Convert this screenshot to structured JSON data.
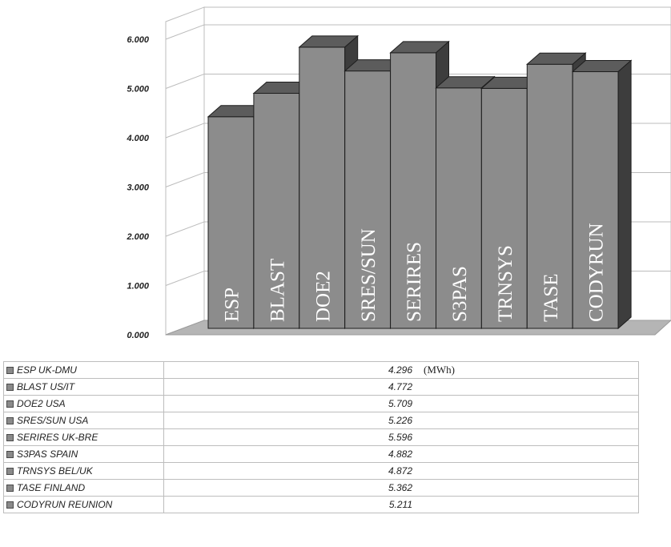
{
  "chart_data": {
    "type": "bar",
    "ylim": [
      0,
      6
    ],
    "y_ticks": [
      "0.000",
      "1.000",
      "2.000",
      "3.000",
      "4.000",
      "5.000",
      "6.000"
    ],
    "categories": [
      "ESP",
      "BLAST",
      "DOE2",
      "SRES/SUN",
      "SERIRES",
      "S3PAS",
      "TRNSYS",
      "TASE",
      "CODYRUN"
    ],
    "values": [
      4.296,
      4.772,
      5.709,
      5.226,
      5.596,
      4.882,
      4.872,
      5.362,
      5.211
    ],
    "grid": true,
    "table": {
      "rows": [
        {
          "label": "ESP UK-DMU",
          "value": "4.296"
        },
        {
          "label": "BLAST US/IT",
          "value": "4.772"
        },
        {
          "label": "DOE2 USA",
          "value": "5.709"
        },
        {
          "label": "SRES/SUN USA",
          "value": "5.226"
        },
        {
          "label": "SERIRES UK-BRE",
          "value": "5.596"
        },
        {
          "label": "S3PAS SPAIN",
          "value": "4.882"
        },
        {
          "label": "TRNSYS BEL/UK",
          "value": "4.872"
        },
        {
          "label": "TASE FINLAND",
          "value": "5.362"
        },
        {
          "label": "CODYRUN REUNION",
          "value": "5.211"
        }
      ],
      "unit": "(MWh)"
    }
  },
  "colors": {
    "bar_front": "#8c8c8c",
    "bar_top": "#5c5c5c",
    "bar_side": "#3d3d3d",
    "floor": "#b5b5b5",
    "grid": "#bcbcbc"
  }
}
